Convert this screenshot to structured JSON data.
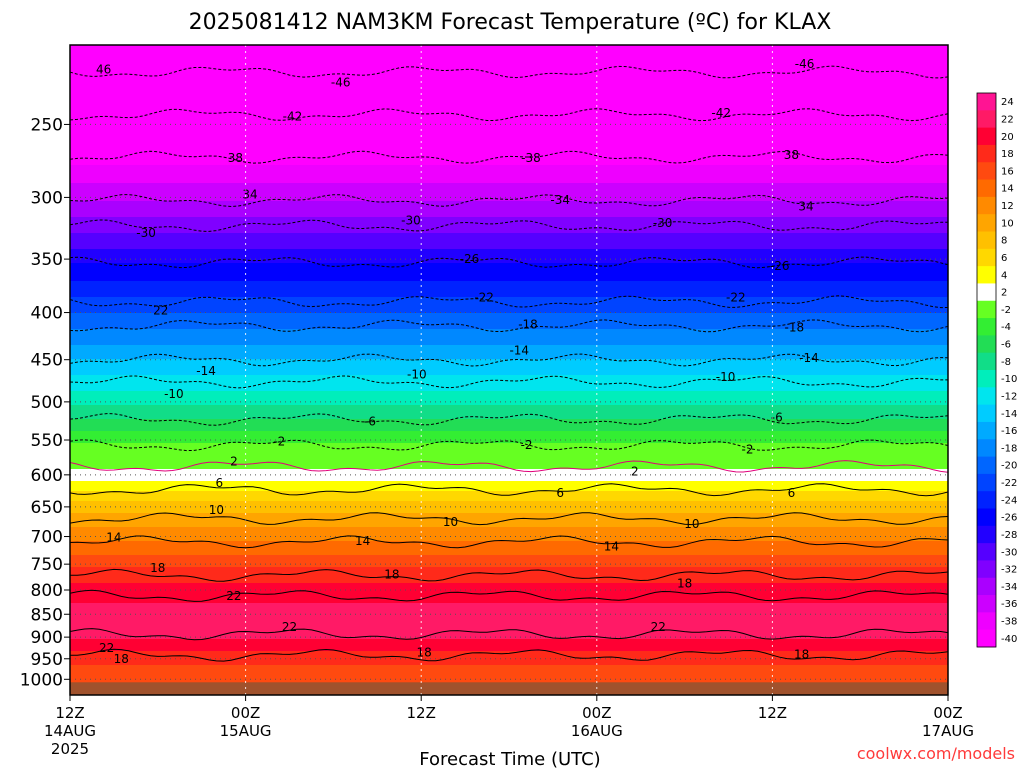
{
  "chart_data": {
    "type": "heatmap",
    "title": "2025081412 NAM3KM Forecast Temperature (ºC) for KLAX",
    "xlabel": "Forecast Time (UTC)",
    "credit": "coolwx.com/models",
    "y_axis": {
      "scale": "log-pressure",
      "range": [
        1040,
        205
      ],
      "ticks": [
        250,
        300,
        350,
        400,
        450,
        500,
        550,
        600,
        650,
        700,
        750,
        800,
        850,
        900,
        950,
        1000
      ],
      "tick_labels": [
        "250",
        "300",
        "350",
        "400",
        "450",
        "500",
        "550",
        "600",
        "650",
        "700",
        "750",
        "800",
        "850",
        "900",
        "950",
        "1000"
      ]
    },
    "x_axis": {
      "range_hours": [
        0,
        60
      ],
      "ticks": [
        {
          "hour": 0,
          "lines": [
            "12Z",
            "14AUG",
            "2025"
          ]
        },
        {
          "hour": 12,
          "lines": [
            "00Z",
            "15AUG"
          ]
        },
        {
          "hour": 24,
          "lines": [
            "12Z"
          ]
        },
        {
          "hour": 36,
          "lines": [
            "00Z",
            "16AUG"
          ]
        },
        {
          "hour": 48,
          "lines": [
            "12Z"
          ]
        },
        {
          "hour": 60,
          "lines": [
            "00Z",
            "17AUG"
          ]
        }
      ]
    },
    "grid": true,
    "colorbar": {
      "position": "right",
      "levels": [
        24,
        22,
        20,
        18,
        16,
        14,
        12,
        10,
        8,
        6,
        4,
        2,
        -2,
        -4,
        -6,
        -8,
        -10,
        -12,
        -14,
        -16,
        -18,
        -20,
        -22,
        -24,
        -26,
        -28,
        -30,
        -32,
        -34,
        -36,
        -38,
        -40
      ],
      "colors": [
        "#ff1493",
        "#ff1a66",
        "#ff0033",
        "#ff2a1a",
        "#ff4a10",
        "#ff6a00",
        "#ff8a00",
        "#ffa500",
        "#ffc000",
        "#ffd800",
        "#ffff00",
        "#ffffff",
        "#66ff22",
        "#33ee33",
        "#22dd55",
        "#11dd88",
        "#00eebb",
        "#00e5ee",
        "#00ccff",
        "#00aaff",
        "#0088ff",
        "#0066ff",
        "#0044ff",
        "#0022ff",
        "#0000ff",
        "#2200ff",
        "#5500ff",
        "#8000ff",
        "#aa00ff",
        "#cc00ff",
        "#ee00ff",
        "#ff00ff"
      ]
    },
    "ground_color": "#a0522d",
    "contours": [
      {
        "value": -46,
        "labels": [
          {
            "hour": 2.3,
            "p": 218,
            "text": "46"
          },
          {
            "hour": 18.5,
            "p": 225,
            "text": "-46"
          },
          {
            "hour": 50.2,
            "p": 215,
            "text": "-46"
          }
        ]
      },
      {
        "value": -42,
        "labels": [
          {
            "hour": 15.2,
            "p": 245,
            "text": "-42"
          },
          {
            "hour": 44.5,
            "p": 243,
            "text": "-42"
          }
        ]
      },
      {
        "value": -38,
        "labels": [
          {
            "hour": 11.3,
            "p": 272,
            "text": "38"
          },
          {
            "hour": 31.5,
            "p": 272,
            "text": "-38"
          },
          {
            "hour": 49.3,
            "p": 270,
            "text": "38"
          }
        ]
      },
      {
        "value": -34,
        "labels": [
          {
            "hour": 12.3,
            "p": 298,
            "text": "34"
          },
          {
            "hour": 33.5,
            "p": 302,
            "text": "-34"
          },
          {
            "hour": 50.3,
            "p": 307,
            "text": "34"
          }
        ]
      },
      {
        "value": -30,
        "labels": [
          {
            "hour": 5.2,
            "p": 328,
            "text": "-30"
          },
          {
            "hour": 23.3,
            "p": 318,
            "text": "-30"
          },
          {
            "hour": 40.5,
            "p": 320,
            "text": "-30"
          }
        ]
      },
      {
        "value": -26,
        "labels": [
          {
            "hour": 27.3,
            "p": 350,
            "text": "-26"
          },
          {
            "hour": 48.5,
            "p": 356,
            "text": "-26"
          }
        ]
      },
      {
        "value": -22,
        "labels": [
          {
            "hour": 6.2,
            "p": 398,
            "text": "22"
          },
          {
            "hour": 28.3,
            "p": 385,
            "text": "-22"
          },
          {
            "hour": 45.5,
            "p": 385,
            "text": "-22"
          }
        ]
      },
      {
        "value": -18,
        "labels": [
          {
            "hour": 31.3,
            "p": 412,
            "text": "-18"
          },
          {
            "hour": 49.5,
            "p": 415,
            "text": "-18"
          }
        ]
      },
      {
        "value": -14,
        "labels": [
          {
            "hour": 9.3,
            "p": 463,
            "text": "-14"
          },
          {
            "hour": 30.7,
            "p": 440,
            "text": "-14"
          },
          {
            "hour": 50.5,
            "p": 448,
            "text": "-14"
          }
        ]
      },
      {
        "value": -10,
        "labels": [
          {
            "hour": 7.1,
            "p": 490,
            "text": "-10"
          },
          {
            "hour": 23.7,
            "p": 467,
            "text": "-10"
          },
          {
            "hour": 44.8,
            "p": 470,
            "text": "-10"
          }
        ]
      },
      {
        "value": -6,
        "labels": [
          {
            "hour": 20.5,
            "p": 525,
            "text": "-6"
          },
          {
            "hour": 48.3,
            "p": 520,
            "text": "-6"
          }
        ]
      },
      {
        "value": -2,
        "labels": [
          {
            "hour": 14.3,
            "p": 552,
            "text": "-2"
          },
          {
            "hour": 31.2,
            "p": 557,
            "text": "-2"
          },
          {
            "hour": 46.3,
            "p": 563,
            "text": "-2"
          }
        ]
      },
      {
        "value": 2,
        "labels": [
          {
            "hour": 11.2,
            "p": 580,
            "text": "2"
          },
          {
            "hour": 38.6,
            "p": 595,
            "text": "2"
          }
        ]
      },
      {
        "value": 6,
        "labels": [
          {
            "hour": 10.2,
            "p": 612,
            "text": "6"
          },
          {
            "hour": 33.5,
            "p": 628,
            "text": "6"
          },
          {
            "hour": 49.3,
            "p": 628,
            "text": "6"
          }
        ]
      },
      {
        "value": 10,
        "labels": [
          {
            "hour": 10.0,
            "p": 655,
            "text": "10"
          },
          {
            "hour": 26.0,
            "p": 675,
            "text": "10"
          },
          {
            "hour": 42.5,
            "p": 678,
            "text": "10"
          }
        ]
      },
      {
        "value": 14,
        "labels": [
          {
            "hour": 3.0,
            "p": 702,
            "text": "14"
          },
          {
            "hour": 20.0,
            "p": 708,
            "text": "14"
          },
          {
            "hour": 37.0,
            "p": 718,
            "text": "14"
          }
        ]
      },
      {
        "value": 18,
        "labels": [
          {
            "hour": 6.0,
            "p": 757,
            "text": "18"
          },
          {
            "hour": 22.0,
            "p": 770,
            "text": "18"
          },
          {
            "hour": 42.0,
            "p": 787,
            "text": "18"
          },
          {
            "hour": 3.5,
            "p": 950,
            "text": "18"
          },
          {
            "hour": 24.2,
            "p": 935,
            "text": "18"
          },
          {
            "hour": 50.0,
            "p": 940,
            "text": "18"
          }
        ]
      },
      {
        "value": 22,
        "labels": [
          {
            "hour": 11.2,
            "p": 812,
            "text": "22"
          },
          {
            "hour": 15.0,
            "p": 878,
            "text": "22"
          },
          {
            "hour": 2.5,
            "p": 925,
            "text": "22"
          },
          {
            "hour": 40.2,
            "p": 878,
            "text": "22"
          }
        ]
      }
    ]
  }
}
